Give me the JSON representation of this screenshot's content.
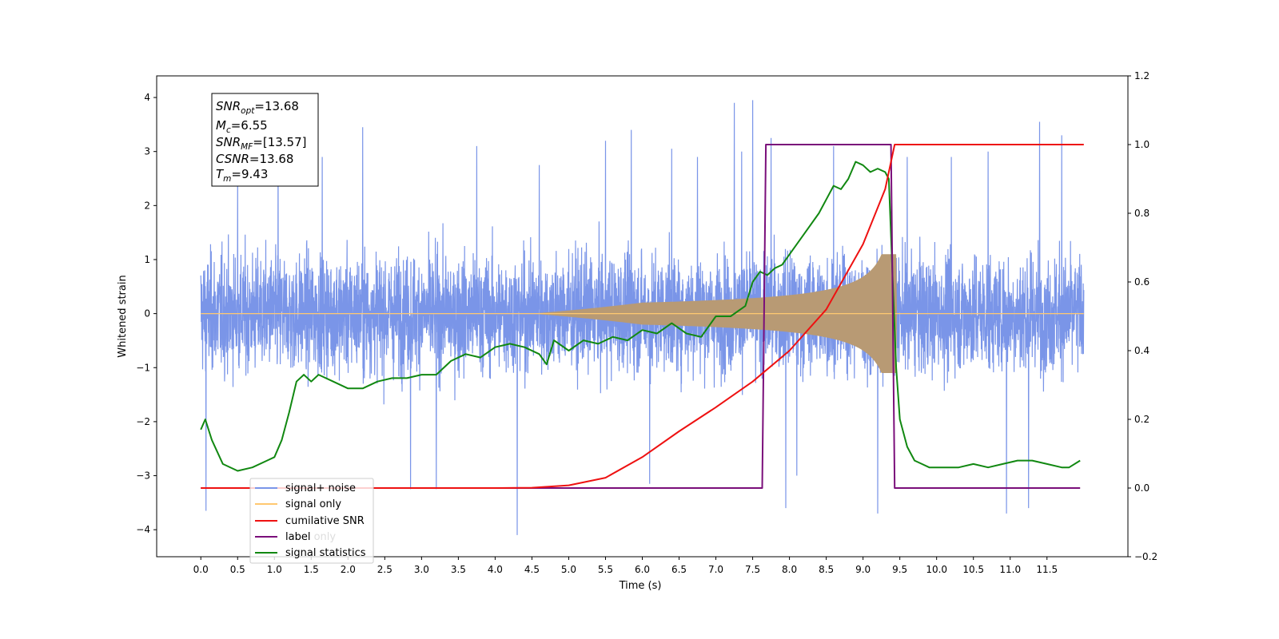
{
  "chart_data": {
    "type": "line",
    "xlabel": "Time (s)",
    "ylabel": "Whitened strain",
    "xlim": [
      -0.6,
      12.6
    ],
    "ylim": [
      -4.5,
      4.4
    ],
    "y2lim": [
      -0.2,
      1.2
    ],
    "xticks": [
      "0.0",
      "0.5",
      "1.0",
      "1.5",
      "2.0",
      "2.5",
      "3.0",
      "3.5",
      "4.0",
      "4.5",
      "5.0",
      "5.5",
      "6.0",
      "6.5",
      "7.0",
      "7.5",
      "8.0",
      "8.5",
      "9.0",
      "9.5",
      "10.0",
      "10.5",
      "11.0",
      "11.5"
    ],
    "yticks": [
      "4",
      "3",
      "2",
      "1",
      "0",
      "−1",
      "−2",
      "−3",
      "−4"
    ],
    "y2ticks": [
      "1.2",
      "1.0",
      "0.8",
      "0.6",
      "0.4",
      "0.2",
      "0.0",
      "−0.2"
    ],
    "grid": false,
    "legend_position": "lower-left",
    "legend": [
      {
        "label": "signal+ noise",
        "color": "#7a95e8"
      },
      {
        "label": "signal only",
        "color": "#ffc870"
      },
      {
        "label": "cumilative SNR",
        "color": "#ee1111"
      },
      {
        "label": "label",
        "color": "#7a0e7a"
      },
      {
        "label": "label only",
        "color": "#dddddd"
      },
      {
        "label": "signal statistics",
        "color": "#118811"
      }
    ],
    "annotation": {
      "line1_sub": "opt",
      "line1_value": "=13.68",
      "line2_sub": "c",
      "line2_value": "=6.55",
      "line3_sub": "MF",
      "line3_value": "=[13.57]",
      "line4_value": "=13.68",
      "line5_sub": "m",
      "line5_value": "=9.43"
    },
    "annotation_names": {
      "snr": "SNR",
      "m": "M",
      "csnr": "CSNR",
      "t": "T"
    },
    "series": [
      {
        "name": "signal+ noise",
        "axis": "left",
        "x_range": [
          0.0,
          12.0
        ],
        "typical_envelope": [
          -1.4,
          1.6
        ],
        "peaks": [
          [
            0.07,
            -3.65
          ],
          [
            0.5,
            2.6
          ],
          [
            1.05,
            3.3
          ],
          [
            1.65,
            2.9
          ],
          [
            2.2,
            3.45
          ],
          [
            2.85,
            -3.25
          ],
          [
            3.2,
            -3.25
          ],
          [
            3.75,
            3.1
          ],
          [
            4.3,
            -4.1
          ],
          [
            4.6,
            2.75
          ],
          [
            5.5,
            3.2
          ],
          [
            5.85,
            3.4
          ],
          [
            6.1,
            -3.15
          ],
          [
            6.4,
            3.05
          ],
          [
            6.75,
            2.9
          ],
          [
            7.35,
            3.0
          ],
          [
            7.75,
            3.25
          ],
          [
            7.95,
            -3.6
          ],
          [
            7.25,
            3.9
          ],
          [
            7.5,
            3.95
          ],
          [
            8.1,
            -3.0
          ],
          [
            8.6,
            3.1
          ],
          [
            9.2,
            -3.7
          ],
          [
            9.6,
            2.9
          ],
          [
            10.2,
            2.9
          ],
          [
            10.7,
            3.0
          ],
          [
            10.95,
            -3.7
          ],
          [
            11.25,
            -3.6
          ],
          [
            11.4,
            3.55
          ],
          [
            11.7,
            3.3
          ]
        ]
      },
      {
        "name": "signal only",
        "axis": "left",
        "x_range": [
          0.0,
          12.0
        ],
        "chirp": {
          "onset": 4.5,
          "merger": 9.43,
          "peak_amplitude": 1.1
        }
      },
      {
        "name": "cumilative SNR",
        "axis": "right",
        "x": [
          0.0,
          4.0,
          4.5,
          5.0,
          5.5,
          6.0,
          6.5,
          7.0,
          7.5,
          8.0,
          8.5,
          9.0,
          9.3,
          9.43,
          12.0
        ],
        "y": [
          0.0,
          0.0,
          0.001,
          0.008,
          0.03,
          0.09,
          0.165,
          0.235,
          0.31,
          0.4,
          0.52,
          0.71,
          0.87,
          1.0,
          1.0
        ]
      },
      {
        "name": "label",
        "axis": "right",
        "x": [
          0.0,
          7.63,
          7.68,
          9.38,
          9.43,
          11.95
        ],
        "y": [
          0.0,
          0.0,
          1.0,
          1.0,
          0.0,
          0.0
        ]
      },
      {
        "name": "signal statistics",
        "axis": "right",
        "x": [
          0.0,
          0.06,
          0.15,
          0.3,
          0.5,
          0.7,
          0.9,
          1.0,
          1.1,
          1.2,
          1.3,
          1.4,
          1.5,
          1.6,
          1.8,
          2.0,
          2.2,
          2.4,
          2.6,
          2.8,
          3.0,
          3.2,
          3.4,
          3.6,
          3.8,
          4.0,
          4.2,
          4.4,
          4.6,
          4.7,
          4.8,
          5.0,
          5.2,
          5.4,
          5.6,
          5.8,
          6.0,
          6.2,
          6.4,
          6.6,
          6.8,
          7.0,
          7.2,
          7.4,
          7.5,
          7.6,
          7.7,
          7.8,
          7.9,
          8.0,
          8.2,
          8.4,
          8.5,
          8.6,
          8.7,
          8.8,
          8.9,
          9.0,
          9.1,
          9.2,
          9.3,
          9.35,
          9.4,
          9.45,
          9.5,
          9.6,
          9.7,
          9.8,
          9.9,
          10.1,
          10.3,
          10.5,
          10.7,
          10.9,
          11.1,
          11.3,
          11.5,
          11.7,
          11.8,
          11.95
        ],
        "y": [
          0.17,
          0.2,
          0.14,
          0.07,
          0.05,
          0.06,
          0.08,
          0.09,
          0.14,
          0.22,
          0.31,
          0.33,
          0.31,
          0.33,
          0.31,
          0.29,
          0.29,
          0.31,
          0.32,
          0.32,
          0.33,
          0.33,
          0.37,
          0.39,
          0.38,
          0.41,
          0.42,
          0.41,
          0.39,
          0.36,
          0.43,
          0.4,
          0.43,
          0.42,
          0.44,
          0.43,
          0.46,
          0.45,
          0.48,
          0.45,
          0.44,
          0.5,
          0.5,
          0.53,
          0.6,
          0.63,
          0.62,
          0.64,
          0.65,
          0.68,
          0.74,
          0.8,
          0.84,
          0.88,
          0.87,
          0.9,
          0.95,
          0.94,
          0.92,
          0.93,
          0.92,
          0.9,
          0.62,
          0.35,
          0.2,
          0.12,
          0.08,
          0.07,
          0.06,
          0.06,
          0.06,
          0.07,
          0.06,
          0.07,
          0.08,
          0.08,
          0.07,
          0.06,
          0.06,
          0.08
        ]
      }
    ]
  }
}
